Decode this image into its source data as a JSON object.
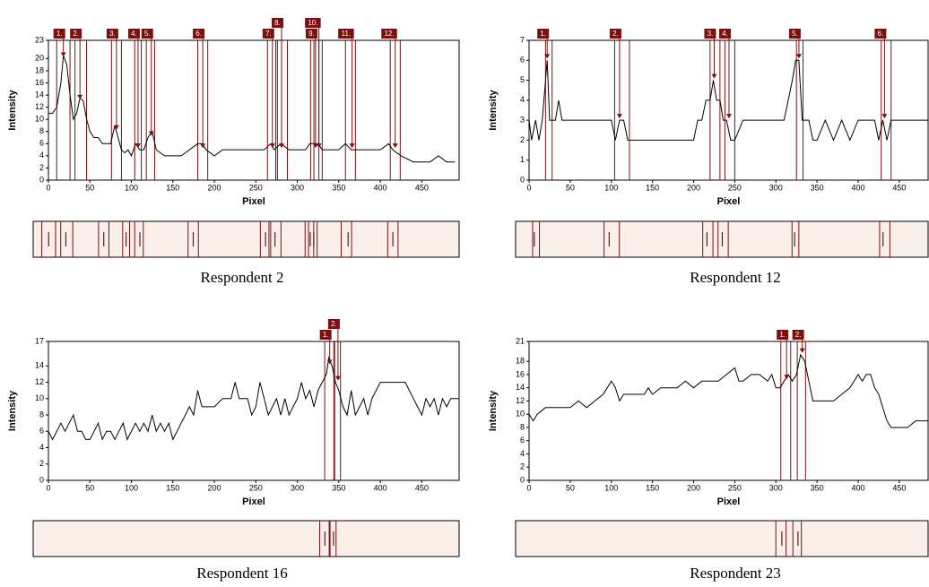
{
  "chart_data": [
    {
      "type": "line",
      "caption": "Respondent 2",
      "xlabel": "Pixel",
      "ylabel": "Intensity",
      "color": "#000000",
      "peak_color": "#7b1010",
      "xlim": [
        0,
        495
      ],
      "ylim": [
        0,
        23
      ],
      "xticks": [
        0,
        50,
        100,
        150,
        200,
        250,
        300,
        350,
        400,
        450
      ],
      "yticks": [
        0,
        2,
        4,
        6,
        8,
        10,
        12,
        14,
        16,
        18,
        20,
        23
      ],
      "x": [
        0,
        5,
        10,
        15,
        18,
        22,
        26,
        30,
        34,
        38,
        42,
        46,
        50,
        55,
        60,
        65,
        70,
        75,
        80,
        84,
        88,
        92,
        96,
        100,
        105,
        110,
        115,
        120,
        125,
        130,
        140,
        150,
        160,
        170,
        180,
        185,
        190,
        200,
        210,
        220,
        230,
        240,
        250,
        260,
        268,
        272,
        280,
        290,
        300,
        310,
        315,
        320,
        325,
        330,
        340,
        350,
        358,
        365,
        380,
        400,
        410,
        415,
        425,
        440,
        460,
        470,
        480,
        490
      ],
      "values": [
        11,
        11,
        12,
        16,
        20.5,
        19,
        14,
        10,
        11,
        13.5,
        13,
        10,
        8,
        7,
        7,
        6,
        6,
        6,
        9,
        7,
        5,
        4.5,
        5,
        4,
        6,
        5,
        5,
        7,
        8,
        5,
        4,
        4,
        4,
        5,
        6,
        6,
        5,
        4,
        5,
        5,
        5,
        5,
        5,
        5,
        6,
        5,
        6,
        5,
        5,
        5,
        6,
        6,
        6,
        5,
        5,
        5,
        6,
        5,
        5,
        5,
        6,
        5,
        4,
        3,
        3,
        4,
        3,
        3
      ],
      "peaks": [
        {
          "label": "1.",
          "x": 18,
          "y": 20,
          "bounds": [
            10,
            26
          ]
        },
        {
          "label": "2.",
          "x": 38,
          "y": 13,
          "bounds": [
            32,
            46
          ]
        },
        {
          "label": "3.",
          "x": 82,
          "y": 8,
          "bounds": [
            76,
            88
          ]
        },
        {
          "label": "4.",
          "x": 108,
          "y": 5,
          "bounds": [
            104,
            112
          ]
        },
        {
          "label": "5.",
          "x": 124,
          "y": 7,
          "bounds": [
            118,
            128
          ]
        },
        {
          "label": "6.",
          "x": 186,
          "y": 5,
          "bounds": [
            180,
            192
          ]
        },
        {
          "label": "7.",
          "x": 270,
          "y": 5,
          "bounds": [
            264,
            274
          ]
        },
        {
          "label": "8.",
          "x": 281,
          "y": 5,
          "bounds": [
            276,
            288
          ]
        },
        {
          "label": "9.",
          "x": 322,
          "y": 5,
          "bounds": [
            316,
            326
          ]
        },
        {
          "label": "10.",
          "x": 326,
          "y": 5,
          "bounds": [
            320,
            330
          ]
        },
        {
          "label": "11.",
          "x": 366,
          "y": 5,
          "bounds": [
            358,
            370
          ]
        },
        {
          "label": "12.",
          "x": 418,
          "y": 5,
          "bounds": [
            412,
            424
          ]
        }
      ]
    },
    {
      "type": "line",
      "caption": "Respondent 12",
      "xlabel": "Pixel",
      "ylabel": "Intensity",
      "color": "#000000",
      "peak_color": "#7b1010",
      "xlim": [
        0,
        485
      ],
      "ylim": [
        0,
        7
      ],
      "xticks": [
        0,
        50,
        100,
        150,
        200,
        250,
        300,
        350,
        400,
        450
      ],
      "yticks": [
        0,
        1,
        2,
        3,
        4,
        5,
        6,
        7
      ],
      "x": [
        0,
        3,
        8,
        12,
        16,
        20,
        22,
        25,
        28,
        32,
        36,
        40,
        45,
        50,
        60,
        70,
        80,
        90,
        100,
        105,
        110,
        115,
        120,
        130,
        150,
        170,
        190,
        200,
        205,
        210,
        215,
        220,
        224,
        228,
        232,
        236,
        240,
        245,
        250,
        260,
        280,
        300,
        310,
        315,
        320,
        324,
        328,
        332,
        340,
        345,
        350,
        360,
        370,
        380,
        390,
        400,
        410,
        420,
        425,
        430,
        435,
        440,
        460,
        485
      ],
      "values": [
        3,
        2,
        3,
        2,
        3,
        5,
        6,
        3,
        3,
        3,
        4,
        3,
        3,
        3,
        3,
        3,
        3,
        3,
        3,
        2,
        3,
        3,
        2,
        2,
        2,
        2,
        2,
        2,
        3,
        3,
        4,
        4,
        5,
        4,
        4,
        3,
        3,
        2,
        2,
        3,
        3,
        3,
        3,
        4,
        5,
        6,
        6,
        3,
        3,
        2,
        2,
        3,
        2,
        3,
        2,
        3,
        3,
        3,
        2,
        3,
        2,
        3,
        3,
        3
      ],
      "peaks": [
        {
          "label": "1.",
          "x": 22,
          "y": 6,
          "bounds": [
            20,
            28
          ]
        },
        {
          "label": "2.",
          "x": 110,
          "y": 3,
          "bounds": [
            104,
            122
          ]
        },
        {
          "label": "3.",
          "x": 225,
          "y": 5,
          "bounds": [
            220,
            232
          ]
        },
        {
          "label": "4.",
          "x": 243,
          "y": 3,
          "bounds": [
            238,
            250
          ]
        },
        {
          "label": "5.",
          "x": 328,
          "y": 6,
          "bounds": [
            325,
            333
          ]
        },
        {
          "label": "6.",
          "x": 432,
          "y": 3,
          "bounds": [
            428,
            440
          ]
        }
      ]
    },
    {
      "type": "line",
      "caption": "Respondent 16",
      "xlabel": "Pixel",
      "ylabel": "Intensity",
      "color": "#000000",
      "peak_color": "#7b1010",
      "xlim": [
        0,
        495
      ],
      "ylim": [
        0,
        17
      ],
      "xticks": [
        0,
        50,
        100,
        150,
        200,
        250,
        300,
        350,
        400,
        450
      ],
      "yticks": [
        0,
        2,
        4,
        6,
        8,
        10,
        12,
        14,
        17
      ],
      "x": [
        0,
        5,
        10,
        15,
        20,
        25,
        30,
        35,
        40,
        45,
        50,
        55,
        60,
        65,
        70,
        75,
        80,
        85,
        90,
        95,
        100,
        105,
        110,
        115,
        120,
        125,
        130,
        135,
        140,
        145,
        150,
        155,
        160,
        165,
        170,
        175,
        180,
        185,
        190,
        200,
        210,
        220,
        225,
        230,
        240,
        245,
        250,
        255,
        260,
        265,
        270,
        275,
        280,
        285,
        290,
        295,
        300,
        305,
        310,
        315,
        320,
        325,
        330,
        335,
        338,
        342,
        346,
        350,
        355,
        360,
        365,
        370,
        375,
        380,
        385,
        390,
        400,
        410,
        420,
        430,
        440,
        445,
        450,
        455,
        460,
        465,
        470,
        475,
        480,
        485,
        495
      ],
      "values": [
        6,
        5,
        6,
        7,
        6,
        7,
        8,
        6,
        6,
        5,
        5,
        6,
        7,
        5,
        6,
        6,
        5,
        6,
        7,
        5,
        6,
        7,
        6,
        7,
        6,
        8,
        6,
        7,
        6,
        7,
        5,
        6,
        7,
        8,
        9,
        8,
        11,
        9,
        9,
        9,
        10,
        10,
        12,
        10,
        10,
        8,
        9,
        12,
        10,
        8,
        9,
        10,
        8,
        10,
        8,
        9,
        10,
        12,
        10,
        11,
        9,
        11,
        12,
        13,
        15,
        14,
        12,
        11,
        9,
        8,
        11,
        8,
        9,
        10,
        8,
        10,
        12,
        12,
        12,
        12,
        10,
        9,
        8,
        10,
        9,
        10,
        8,
        10,
        9,
        10,
        10
      ],
      "peaks": [
        {
          "label": "1.",
          "x": 339,
          "y": 14,
          "bounds": [
            333,
            345
          ]
        },
        {
          "label": "2.",
          "x": 349,
          "y": 12,
          "bounds": [
            344,
            352
          ]
        }
      ]
    },
    {
      "type": "line",
      "caption": "Respondent 23",
      "xlabel": "Pixel",
      "ylabel": "Intensity",
      "color": "#000000",
      "peak_color": "#7b1010",
      "xlim": [
        0,
        485
      ],
      "ylim": [
        0,
        21
      ],
      "xticks": [
        0,
        50,
        100,
        150,
        200,
        250,
        300,
        350,
        400,
        450
      ],
      "yticks": [
        0,
        2,
        4,
        6,
        8,
        10,
        12,
        14,
        16,
        18,
        21
      ],
      "x": [
        0,
        5,
        10,
        20,
        30,
        40,
        50,
        60,
        70,
        80,
        90,
        95,
        100,
        105,
        110,
        115,
        120,
        130,
        140,
        145,
        150,
        160,
        170,
        180,
        190,
        200,
        210,
        220,
        230,
        240,
        250,
        255,
        260,
        270,
        280,
        290,
        295,
        300,
        305,
        310,
        315,
        320,
        325,
        330,
        335,
        340,
        345,
        350,
        360,
        370,
        380,
        390,
        400,
        405,
        410,
        415,
        420,
        425,
        430,
        435,
        440,
        450,
        460,
        470,
        485
      ],
      "values": [
        10,
        9,
        10,
        11,
        11,
        11,
        11,
        12,
        11,
        12,
        13,
        14,
        15,
        14,
        12,
        13,
        13,
        13,
        13,
        14,
        13,
        14,
        14,
        14,
        15,
        14,
        15,
        15,
        15,
        16,
        17,
        15,
        15,
        16,
        16,
        15,
        16,
        14,
        14,
        15,
        16,
        15,
        16,
        19,
        18,
        15,
        12,
        12,
        12,
        12,
        13,
        14,
        16,
        15,
        16,
        16,
        14,
        13,
        11,
        9,
        8,
        8,
        8,
        9,
        9
      ],
      "peaks": [
        {
          "label": "1.",
          "x": 313,
          "y": 15,
          "bounds": [
            306,
            318
          ]
        },
        {
          "label": "2.",
          "x": 332,
          "y": 19,
          "bounds": [
            326,
            336
          ]
        }
      ]
    }
  ]
}
